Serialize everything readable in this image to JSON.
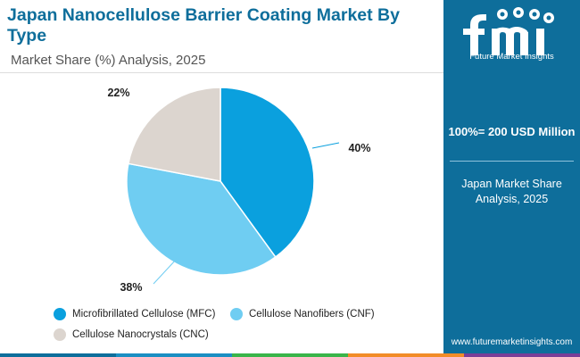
{
  "title": "Japan Nanocellulose Barrier Coating Market By Type",
  "subtitle": "Market Share (%) Analysis, 2025",
  "chart_data": {
    "type": "pie",
    "categories": [
      "Microfibrillated Cellulose (MFC)",
      "Cellulose Nanofibers (CNF)",
      "Cellulose Nanocrystals (CNC)"
    ],
    "values": [
      40,
      38,
      22
    ],
    "labels": [
      "40%",
      "38%",
      "22%"
    ],
    "colors": [
      "#0aa0de",
      "#6fcdf2",
      "#dcd5cf"
    ],
    "legend": "bottom"
  },
  "panel": {
    "brand": "Future Market Insights",
    "total": "100%= 200 USD Million",
    "region": "Japan Market Share Analysis, 2025",
    "url": "www.futuremarketinsights.com"
  },
  "accent_colors": [
    "#0e6e9b",
    "#1b8fc3",
    "#3ab54a",
    "#f28c28",
    "#7a3e98"
  ]
}
